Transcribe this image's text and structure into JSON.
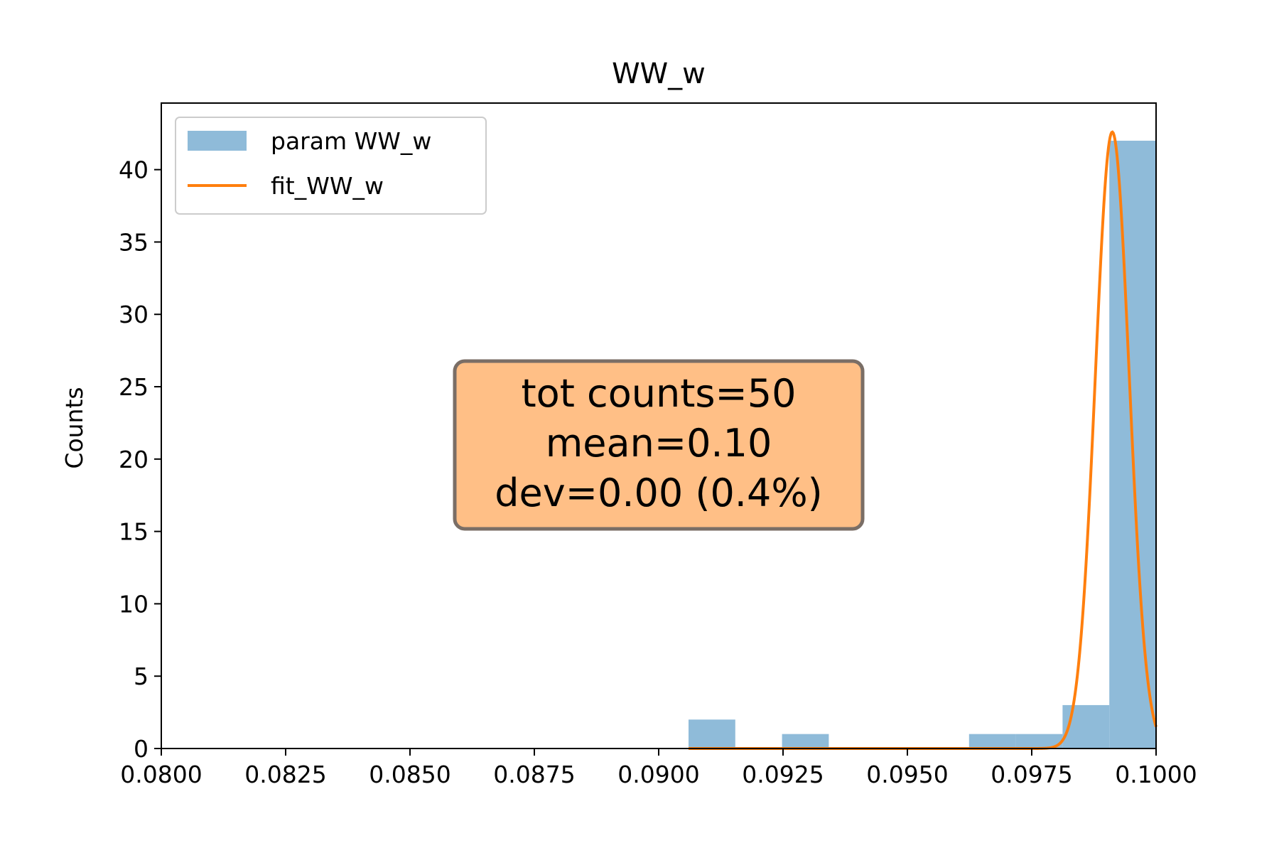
{
  "chart_data": {
    "type": "bar",
    "title": "WW_w",
    "xlabel": "",
    "ylabel": "Counts",
    "xlim": [
      0.08,
      0.1
    ],
    "ylim": [
      0,
      44.6
    ],
    "x_ticks": [
      0.08,
      0.0825,
      0.085,
      0.0875,
      0.09,
      0.0925,
      0.095,
      0.0975,
      0.1
    ],
    "x_tick_labels": [
      "0.0800",
      "0.0825",
      "0.0850",
      "0.0875",
      "0.0900",
      "0.0925",
      "0.0950",
      "0.0975",
      "0.1000"
    ],
    "y_ticks": [
      0,
      5,
      10,
      15,
      20,
      25,
      30,
      35,
      40
    ],
    "y_tick_labels": [
      "0",
      "5",
      "10",
      "15",
      "20",
      "25",
      "30",
      "35",
      "40"
    ],
    "grid": false,
    "legend_position": "top-left",
    "series": [
      {
        "name": "param WW_w",
        "kind": "histogram",
        "color": "#8fbbd9",
        "bin_edges": [
          0.0906,
          0.09154,
          0.09248,
          0.09342,
          0.09436,
          0.0953,
          0.09624,
          0.09718,
          0.09812,
          0.09906,
          0.1
        ],
        "counts": [
          2,
          0,
          1,
          0,
          0,
          0,
          1,
          1,
          3,
          42
        ]
      },
      {
        "name": "fit_WW_w",
        "kind": "line",
        "color": "#ff7f0e",
        "model": "gaussian",
        "x_range": [
          0.0906,
          0.1
        ],
        "amplitude": 42.6,
        "mean": 0.09912,
        "sigma": 0.00034
      }
    ],
    "annotation": {
      "lines": [
        "tot counts=50",
        "mean=0.10",
        "dev=0.00 (0.4%)"
      ],
      "box_color": "#ffbf86",
      "border_color": "#7a6e66",
      "position": "center"
    }
  }
}
